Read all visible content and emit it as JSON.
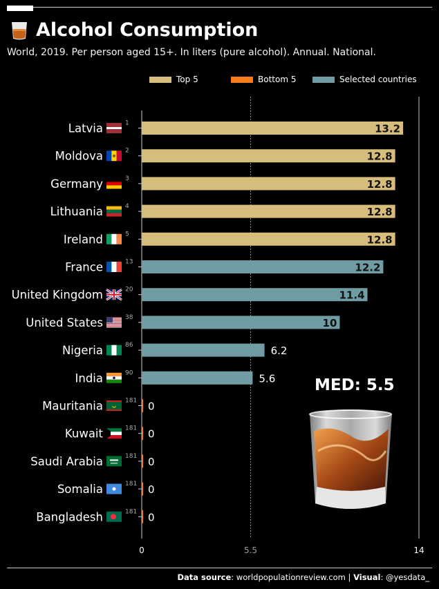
{
  "header": {
    "title": "Alcohol Consumption",
    "subtitle": "World, 2019. Per person aged 15+. In liters (pure alcohol). Annual. National."
  },
  "legend": [
    {
      "label": "Top 5",
      "color": "#d7bd7c"
    },
    {
      "label": "Bottom 5",
      "color": "#f57c1f"
    },
    {
      "label": "Selected countries",
      "color": "#6f9da3"
    }
  ],
  "median_label": "MED: 5.5",
  "footer": {
    "source_label": "Data source",
    "source_value": ": worldpopulationreview.com",
    "separator": " | ",
    "visual_label": "Visual",
    "visual_value": ": @yesdata_"
  },
  "chart_data": {
    "type": "bar",
    "orientation": "horizontal",
    "xlim": [
      0,
      14
    ],
    "x_ticks": [
      "0",
      "5.5",
      "14"
    ],
    "median": 5.5,
    "rows": [
      {
        "country": "Latvia",
        "rank": "1",
        "value": 13.2,
        "label": "13.2",
        "group": "Top 5",
        "flag": "latvia"
      },
      {
        "country": "Moldova",
        "rank": "2",
        "value": 12.8,
        "label": "12.8",
        "group": "Top 5",
        "flag": "moldova"
      },
      {
        "country": "Germany",
        "rank": "3",
        "value": 12.8,
        "label": "12.8",
        "group": "Top 5",
        "flag": "germany"
      },
      {
        "country": "Lithuania",
        "rank": "4",
        "value": 12.8,
        "label": "12.8",
        "group": "Top 5",
        "flag": "lithuania"
      },
      {
        "country": "Ireland",
        "rank": "5",
        "value": 12.8,
        "label": "12.8",
        "group": "Top 5",
        "flag": "ireland"
      },
      {
        "country": "France",
        "rank": "13",
        "value": 12.2,
        "label": "12.2",
        "group": "Selected countries",
        "flag": "france"
      },
      {
        "country": "United Kingdom",
        "rank": "20",
        "value": 11.4,
        "label": "11.4",
        "group": "Selected countries",
        "flag": "uk"
      },
      {
        "country": "United States",
        "rank": "38",
        "value": 10,
        "label": "10",
        "group": "Selected countries",
        "flag": "usa"
      },
      {
        "country": "Nigeria",
        "rank": "86",
        "value": 6.2,
        "label": "6.2",
        "group": "Selected countries",
        "flag": "nigeria"
      },
      {
        "country": "India",
        "rank": "90",
        "value": 5.6,
        "label": "5.6",
        "group": "Selected countries",
        "flag": "india"
      },
      {
        "country": "Mauritania",
        "rank": "181",
        "value": 0,
        "label": "0",
        "group": "Bottom 5",
        "flag": "mauritania"
      },
      {
        "country": "Kuwait",
        "rank": "181",
        "value": 0,
        "label": "0",
        "group": "Bottom 5",
        "flag": "kuwait"
      },
      {
        "country": "Saudi Arabia",
        "rank": "181",
        "value": 0,
        "label": "0",
        "group": "Bottom 5",
        "flag": "saudi-arabia"
      },
      {
        "country": "Somalia",
        "rank": "181",
        "value": 0,
        "label": "0",
        "group": "Bottom 5",
        "flag": "somalia"
      },
      {
        "country": "Bangladesh",
        "rank": "181",
        "value": 0,
        "label": "0",
        "group": "Bottom 5",
        "flag": "bangladesh"
      }
    ]
  }
}
